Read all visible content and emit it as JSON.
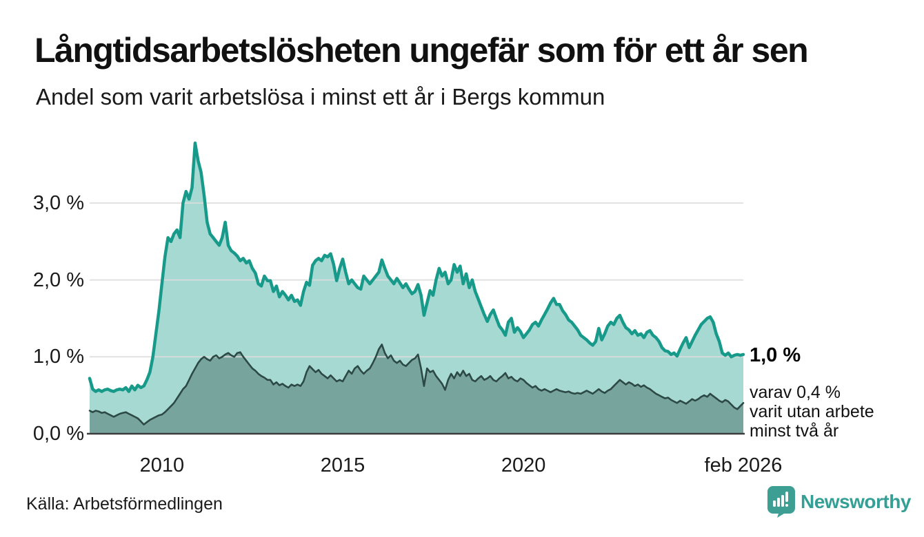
{
  "header": {
    "title": "Långtidsarbetslösheten ungefär som för ett år sen",
    "subtitle": "Andel som varit arbetslösa i minst ett år i Bergs kommun"
  },
  "annotations": {
    "end_value": "1,0 %",
    "subset_line1": "varav 0,4 %",
    "subset_line2": "varit utan arbete",
    "subset_line3": "minst två år"
  },
  "footer": {
    "source": "Källa: Arbetsförmedlingen",
    "brand": "Newsworthy"
  },
  "colors": {
    "line_total": "#189a8b",
    "line_subset": "#2c4945",
    "fill_total": "rgba(23,154,140,0.38)",
    "fill_subset": "rgba(40,70,64,0.36)",
    "gridline": "#dcdcdc",
    "axis_line": "#3c3c3c",
    "brand_teal": "#3d9f93"
  },
  "chart_data": {
    "type": "area",
    "title": "Långtidsarbetslösheten ungefär som för ett år sen",
    "subtitle": "Andel som varit arbetslösa i minst ett år i Bergs kommun",
    "unit": "%",
    "frequency": "monthly",
    "x_start": "2008-01",
    "x_end": "2026-02",
    "ylim": [
      0,
      3.9
    ],
    "grid": "horizontal",
    "legend_position": "none",
    "yticks": [
      {
        "value": 0,
        "label": "0,0 %"
      },
      {
        "value": 1,
        "label": "1,0 %"
      },
      {
        "value": 2,
        "label": "2,0 %"
      },
      {
        "value": 3,
        "label": "3,0 %"
      }
    ],
    "xticks": [
      {
        "month_index": 24,
        "label": "2010"
      },
      {
        "month_index": 84,
        "label": "2015"
      },
      {
        "month_index": 144,
        "label": "2020"
      },
      {
        "month_index": 217,
        "label": "feb 2026"
      }
    ],
    "series": [
      {
        "name": "Andel arbetslösa minst ett år",
        "end_label": "1,0 %",
        "values": [
          0.72,
          0.58,
          0.55,
          0.57,
          0.55,
          0.57,
          0.58,
          0.56,
          0.55,
          0.57,
          0.58,
          0.57,
          0.6,
          0.55,
          0.62,
          0.57,
          0.63,
          0.6,
          0.62,
          0.7,
          0.8,
          1.0,
          1.3,
          1.6,
          1.95,
          2.3,
          2.55,
          2.5,
          2.6,
          2.65,
          2.55,
          3.0,
          3.15,
          3.05,
          3.2,
          3.78,
          3.55,
          3.4,
          3.1,
          2.75,
          2.6,
          2.55,
          2.5,
          2.45,
          2.55,
          2.75,
          2.45,
          2.38,
          2.35,
          2.31,
          2.25,
          2.28,
          2.22,
          2.25,
          2.15,
          2.09,
          1.95,
          1.92,
          2.05,
          1.99,
          1.99,
          1.85,
          1.92,
          1.78,
          1.85,
          1.8,
          1.74,
          1.8,
          1.72,
          1.74,
          1.67,
          1.85,
          1.97,
          1.93,
          2.19,
          2.25,
          2.28,
          2.25,
          2.32,
          2.3,
          2.34,
          2.2,
          1.99,
          2.15,
          2.27,
          2.1,
          1.95,
          2.0,
          1.95,
          1.9,
          1.88,
          2.05,
          2.0,
          1.95,
          2.0,
          2.05,
          2.1,
          2.26,
          2.15,
          2.05,
          2.0,
          1.95,
          2.02,
          1.96,
          1.9,
          1.95,
          1.88,
          1.82,
          1.85,
          1.94,
          1.8,
          1.54,
          1.7,
          1.86,
          1.8,
          2.0,
          2.15,
          2.05,
          2.1,
          1.95,
          2.0,
          2.2,
          2.1,
          2.18,
          1.95,
          2.08,
          1.9,
          2.0,
          1.85,
          1.75,
          1.65,
          1.55,
          1.46,
          1.55,
          1.61,
          1.5,
          1.4,
          1.35,
          1.28,
          1.45,
          1.5,
          1.32,
          1.38,
          1.33,
          1.25,
          1.3,
          1.35,
          1.42,
          1.45,
          1.4,
          1.48,
          1.55,
          1.62,
          1.7,
          1.76,
          1.68,
          1.68,
          1.6,
          1.55,
          1.48,
          1.45,
          1.4,
          1.35,
          1.28,
          1.25,
          1.22,
          1.18,
          1.15,
          1.2,
          1.37,
          1.22,
          1.3,
          1.4,
          1.45,
          1.42,
          1.5,
          1.54,
          1.45,
          1.38,
          1.35,
          1.3,
          1.34,
          1.28,
          1.3,
          1.25,
          1.32,
          1.34,
          1.28,
          1.25,
          1.2,
          1.12,
          1.08,
          1.07,
          1.03,
          1.05,
          1.01,
          1.1,
          1.18,
          1.25,
          1.12,
          1.2,
          1.28,
          1.35,
          1.42,
          1.46,
          1.5,
          1.52,
          1.45,
          1.3,
          1.2,
          1.05,
          1.02,
          1.05,
          1.0,
          1.02,
          1.03,
          1.02,
          1.03
        ]
      },
      {
        "name": "varav arbetslösa minst två år",
        "end_label": "varav 0,4 % varit utan arbete minst två år",
        "values": [
          0.3,
          0.28,
          0.3,
          0.29,
          0.27,
          0.28,
          0.26,
          0.24,
          0.22,
          0.24,
          0.26,
          0.27,
          0.28,
          0.26,
          0.24,
          0.22,
          0.2,
          0.16,
          0.12,
          0.15,
          0.18,
          0.2,
          0.22,
          0.24,
          0.25,
          0.28,
          0.32,
          0.36,
          0.4,
          0.46,
          0.52,
          0.58,
          0.62,
          0.7,
          0.78,
          0.85,
          0.92,
          0.97,
          1.0,
          0.97,
          0.95,
          1.0,
          1.02,
          0.98,
          1.0,
          1.03,
          1.05,
          1.02,
          1.0,
          1.05,
          1.06,
          1.0,
          0.95,
          0.9,
          0.85,
          0.82,
          0.78,
          0.75,
          0.73,
          0.7,
          0.7,
          0.64,
          0.67,
          0.63,
          0.65,
          0.62,
          0.6,
          0.64,
          0.62,
          0.64,
          0.62,
          0.68,
          0.8,
          0.88,
          0.84,
          0.8,
          0.83,
          0.78,
          0.75,
          0.72,
          0.76,
          0.72,
          0.68,
          0.7,
          0.68,
          0.75,
          0.82,
          0.78,
          0.85,
          0.88,
          0.82,
          0.78,
          0.82,
          0.85,
          0.92,
          1.0,
          1.1,
          1.16,
          1.05,
          0.98,
          1.02,
          0.95,
          0.92,
          0.95,
          0.9,
          0.88,
          0.92,
          0.96,
          0.98,
          1.03,
          0.85,
          0.62,
          0.85,
          0.8,
          0.82,
          0.75,
          0.7,
          0.65,
          0.57,
          0.7,
          0.78,
          0.72,
          0.8,
          0.75,
          0.82,
          0.75,
          0.78,
          0.7,
          0.68,
          0.72,
          0.75,
          0.7,
          0.72,
          0.75,
          0.7,
          0.68,
          0.72,
          0.75,
          0.79,
          0.72,
          0.74,
          0.7,
          0.68,
          0.72,
          0.7,
          0.66,
          0.63,
          0.6,
          0.62,
          0.58,
          0.56,
          0.58,
          0.56,
          0.54,
          0.56,
          0.58,
          0.56,
          0.55,
          0.54,
          0.55,
          0.53,
          0.52,
          0.53,
          0.52,
          0.54,
          0.56,
          0.54,
          0.52,
          0.55,
          0.58,
          0.55,
          0.53,
          0.56,
          0.58,
          0.62,
          0.66,
          0.7,
          0.67,
          0.64,
          0.67,
          0.65,
          0.62,
          0.64,
          0.61,
          0.63,
          0.6,
          0.58,
          0.55,
          0.52,
          0.5,
          0.48,
          0.46,
          0.47,
          0.44,
          0.42,
          0.4,
          0.43,
          0.41,
          0.39,
          0.42,
          0.45,
          0.43,
          0.45,
          0.48,
          0.5,
          0.48,
          0.52,
          0.49,
          0.46,
          0.43,
          0.41,
          0.44,
          0.42,
          0.38,
          0.34,
          0.32,
          0.36,
          0.4
        ]
      }
    ]
  }
}
